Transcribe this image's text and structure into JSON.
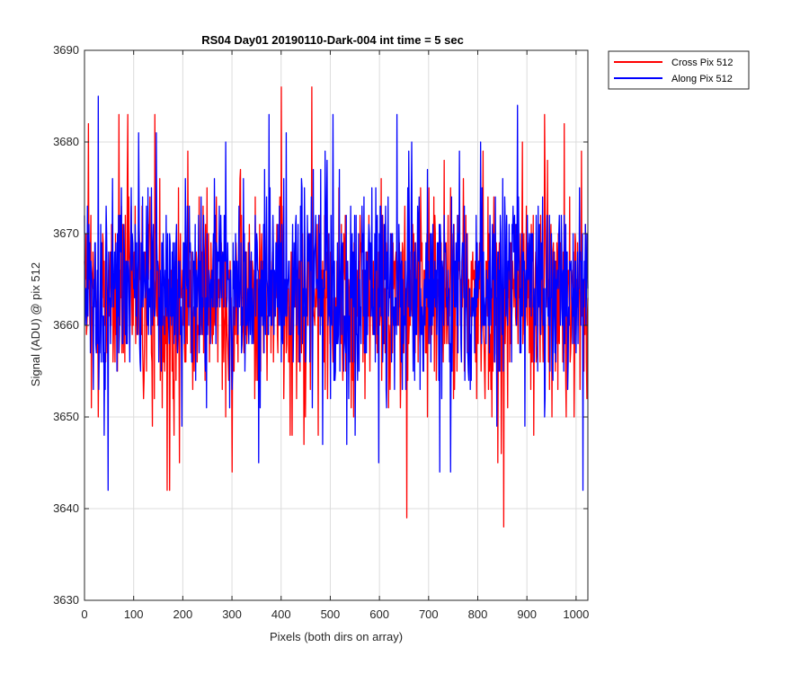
{
  "chart_data": {
    "type": "line",
    "title": "RS04 Day01 20190110-Dark-004 int time = 5 sec",
    "xlabel": "Pixels (both dirs on array)",
    "ylabel": "Signal (ADU) @ pix 512",
    "xlim": [
      0,
      1024
    ],
    "ylim": [
      3630,
      3690
    ],
    "xticks": [
      0,
      100,
      200,
      300,
      400,
      500,
      600,
      700,
      800,
      900,
      1000
    ],
    "yticks": [
      3630,
      3640,
      3650,
      3660,
      3670,
      3680,
      3690
    ],
    "grid": true,
    "legend_position": "outside-top-right",
    "series": [
      {
        "name": "Cross Pix 512",
        "color": "#ff0000",
        "n_points": 1024,
        "mean": 3663,
        "min": 3638,
        "max": 3686,
        "notable_points": [
          {
            "x": 0,
            "y": 3667
          },
          {
            "x": 8,
            "y": 3682
          },
          {
            "x": 14,
            "y": 3651
          },
          {
            "x": 70,
            "y": 3683
          },
          {
            "x": 88,
            "y": 3683
          },
          {
            "x": 120,
            "y": 3652
          },
          {
            "x": 143,
            "y": 3683
          },
          {
            "x": 168,
            "y": 3642
          },
          {
            "x": 173,
            "y": 3642
          },
          {
            "x": 182,
            "y": 3648
          },
          {
            "x": 193,
            "y": 3645
          },
          {
            "x": 210,
            "y": 3679
          },
          {
            "x": 300,
            "y": 3644
          },
          {
            "x": 400,
            "y": 3686
          },
          {
            "x": 418,
            "y": 3648
          },
          {
            "x": 462,
            "y": 3686
          },
          {
            "x": 475,
            "y": 3648
          },
          {
            "x": 655,
            "y": 3639
          },
          {
            "x": 700,
            "y": 3675
          },
          {
            "x": 770,
            "y": 3676
          },
          {
            "x": 820,
            "y": 3674
          },
          {
            "x": 840,
            "y": 3645
          },
          {
            "x": 852,
            "y": 3638
          },
          {
            "x": 860,
            "y": 3651
          },
          {
            "x": 890,
            "y": 3680
          },
          {
            "x": 935,
            "y": 3683
          },
          {
            "x": 975,
            "y": 3682
          },
          {
            "x": 1010,
            "y": 3679
          },
          {
            "x": 1024,
            "y": 3663
          }
        ]
      },
      {
        "name": "Along Pix 512",
        "color": "#0000ff",
        "n_points": 1024,
        "mean": 3664,
        "min": 3642,
        "max": 3685,
        "notable_points": [
          {
            "x": 0,
            "y": 3672
          },
          {
            "x": 28,
            "y": 3685
          },
          {
            "x": 40,
            "y": 3648
          },
          {
            "x": 48,
            "y": 3642
          },
          {
            "x": 110,
            "y": 3681
          },
          {
            "x": 146,
            "y": 3681
          },
          {
            "x": 205,
            "y": 3676
          },
          {
            "x": 248,
            "y": 3651
          },
          {
            "x": 287,
            "y": 3680
          },
          {
            "x": 354,
            "y": 3645
          },
          {
            "x": 375,
            "y": 3683
          },
          {
            "x": 410,
            "y": 3681
          },
          {
            "x": 505,
            "y": 3683
          },
          {
            "x": 550,
            "y": 3648
          },
          {
            "x": 598,
            "y": 3645
          },
          {
            "x": 635,
            "y": 3683
          },
          {
            "x": 665,
            "y": 3680
          },
          {
            "x": 722,
            "y": 3644
          },
          {
            "x": 744,
            "y": 3644
          },
          {
            "x": 762,
            "y": 3679
          },
          {
            "x": 805,
            "y": 3680
          },
          {
            "x": 850,
            "y": 3676
          },
          {
            "x": 880,
            "y": 3684
          },
          {
            "x": 895,
            "y": 3649
          },
          {
            "x": 1013,
            "y": 3642
          },
          {
            "x": 1024,
            "y": 3664
          }
        ]
      }
    ]
  }
}
